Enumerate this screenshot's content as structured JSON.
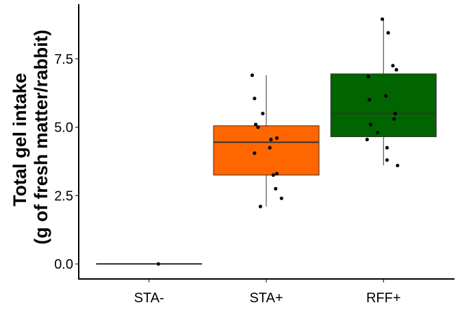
{
  "chart_data": {
    "type": "box",
    "title": "",
    "xlabel": "",
    "ylabel_lines": [
      "Total gel intake",
      "(g of fresh matter/rabbit)"
    ],
    "ylim": [
      -0.55,
      9.45
    ],
    "yticks": [
      0.0,
      2.5,
      5.0,
      7.5
    ],
    "ytick_labels": [
      "0.0",
      "2.5",
      "5.0",
      "7.5"
    ],
    "grid": false,
    "legend": "none",
    "categories": [
      "STA-",
      "STA+",
      "RFF+"
    ],
    "boxes": [
      {
        "category": "STA-",
        "fill": "#ffffff",
        "q1": 0.0,
        "median": 0.0,
        "q3": 0.0,
        "whisker_low": 0.0,
        "whisker_high": 0.0
      },
      {
        "category": "STA+",
        "fill": "#ff6600",
        "q1": 3.25,
        "median": 4.45,
        "q3": 5.05,
        "whisker_low": 2.1,
        "whisker_high": 6.9
      },
      {
        "category": "RFF+",
        "fill": "#006400",
        "q1": 4.65,
        "median": 5.5,
        "q3": 6.95,
        "whisker_low": 3.6,
        "whisker_high": 8.95
      }
    ],
    "points": [
      {
        "category": "STA-",
        "values": [
          0.0
        ],
        "jitter": [
          0.08
        ]
      },
      {
        "category": "STA+",
        "values": [
          6.9,
          6.05,
          5.5,
          5.1,
          5.0,
          4.6,
          4.55,
          4.25,
          4.05,
          3.3,
          3.25,
          2.75,
          2.4,
          2.1
        ],
        "jitter": [
          -0.12,
          -0.1,
          -0.03,
          -0.09,
          -0.07,
          0.09,
          0.04,
          0.03,
          -0.1,
          0.09,
          0.06,
          0.08,
          0.13,
          -0.05
        ]
      },
      {
        "category": "RFF+",
        "values": [
          8.95,
          8.45,
          7.25,
          7.1,
          6.85,
          6.15,
          6.0,
          5.5,
          5.3,
          5.1,
          4.8,
          4.55,
          4.25,
          3.8,
          3.6
        ],
        "jitter": [
          -0.01,
          0.04,
          0.08,
          0.11,
          -0.13,
          0.02,
          -0.12,
          0.1,
          0.09,
          -0.11,
          -0.05,
          -0.14,
          0.03,
          0.03,
          0.12
        ]
      }
    ]
  }
}
